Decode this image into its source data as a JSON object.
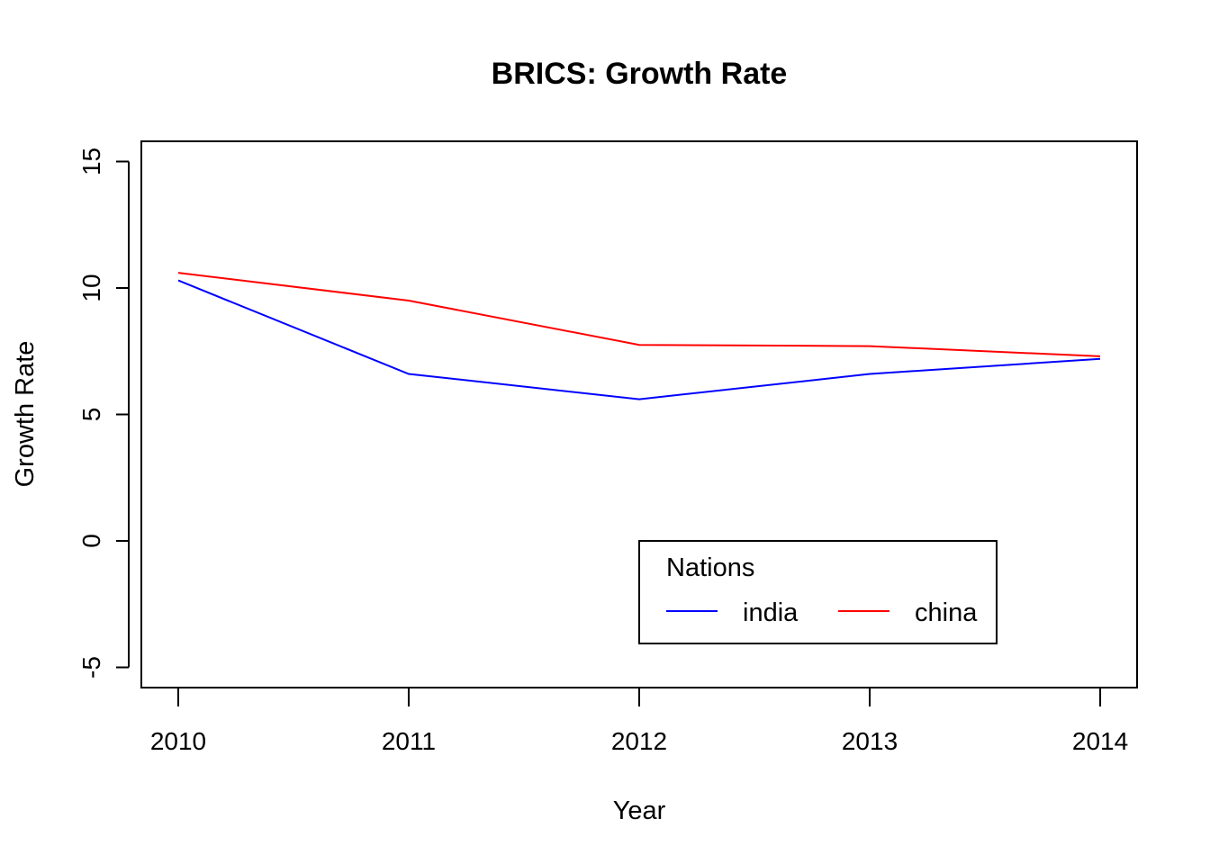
{
  "chart_data": {
    "type": "line",
    "title": "BRICS: Growth Rate",
    "xlabel": "Year",
    "ylabel": "Growth Rate",
    "x": [
      2010,
      2011,
      2012,
      2013,
      2014
    ],
    "x_tick_labels": [
      "2010",
      "2011",
      "2012",
      "2013",
      "2014"
    ],
    "y_ticks": [
      -5,
      0,
      5,
      10,
      15
    ],
    "y_tick_labels": [
      "-5",
      "0",
      "5",
      "10",
      "15"
    ],
    "xlim": [
      2009.84,
      2014.16
    ],
    "ylim": [
      -5.8,
      15.8
    ],
    "grid": false,
    "series": [
      {
        "name": "india",
        "color": "#0000ff",
        "values": [
          10.3,
          6.6,
          5.6,
          6.6,
          7.2
        ]
      },
      {
        "name": "china",
        "color": "#ff0000",
        "values": [
          10.6,
          9.5,
          7.75,
          7.7,
          7.3
        ]
      }
    ],
    "legend": {
      "title": "Nations",
      "placement": "bottom-right"
    }
  }
}
